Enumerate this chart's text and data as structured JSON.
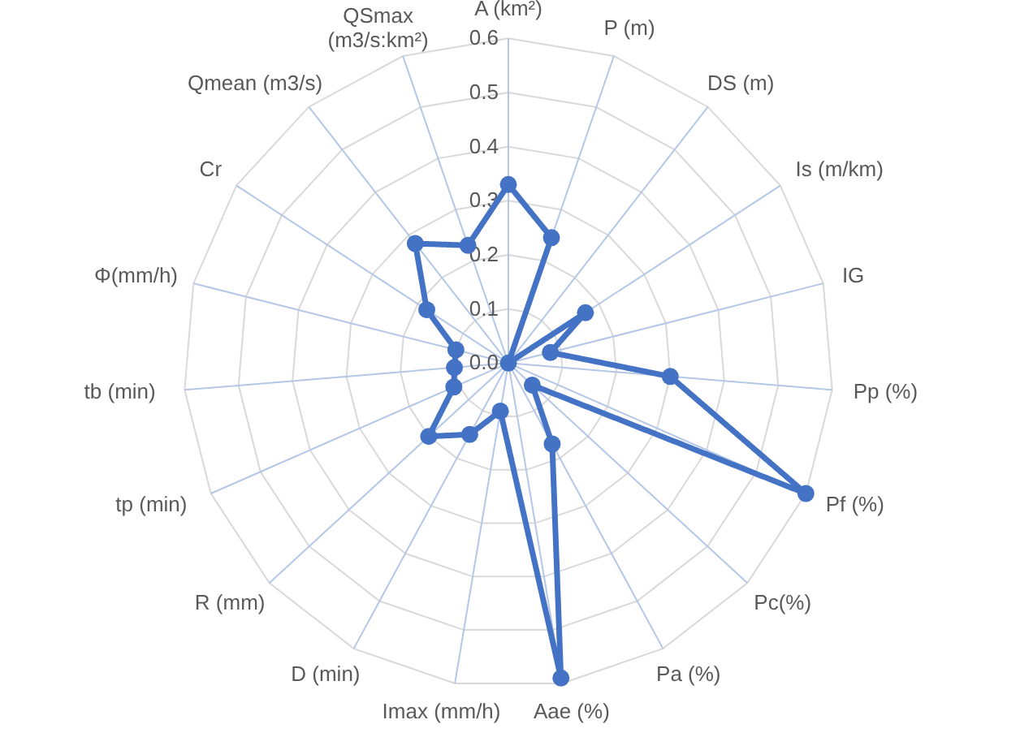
{
  "chart_data": {
    "type": "radar",
    "categories": [
      "A (km²)",
      "P (m)",
      "DS (m)",
      "Is (m/km)",
      "IG",
      "Pp (%)",
      "Pf (%)",
      "Pc(%)",
      "Pa (%)",
      "Aae (%)",
      "Imax (mm/h)",
      "D (min)",
      "R (mm)",
      "tp (min)",
      "tb (min)",
      "Φ(mm/h)",
      "Cr",
      "Qmean (m3/s)",
      "QSmax (m3/s:km²)"
    ],
    "series": [
      {
        "color": "#4472c4",
        "values": [
          0.33,
          0.245,
          0.0,
          0.17,
          0.08,
          0.3,
          0.6,
          0.06,
          0.17,
          0.59,
          0.09,
          0.15,
          0.2,
          0.11,
          0.1,
          0.1,
          0.18,
          0.28,
          0.23
        ]
      }
    ],
    "ylim": [
      0,
      0.6
    ],
    "yticks": [
      {
        "value": 0,
        "label": "0.0"
      },
      {
        "value": 0.1,
        "label": "0.1"
      },
      {
        "value": 0.2,
        "label": "0.2"
      },
      {
        "value": 0.3,
        "label": "0.3"
      },
      {
        "value": 0.4,
        "label": "0.4"
      },
      {
        "value": 0.5,
        "label": "0.5"
      },
      {
        "value": 0.6,
        "label": "0.6"
      }
    ],
    "grid": true,
    "marker": "circle",
    "line_style": "solid"
  }
}
